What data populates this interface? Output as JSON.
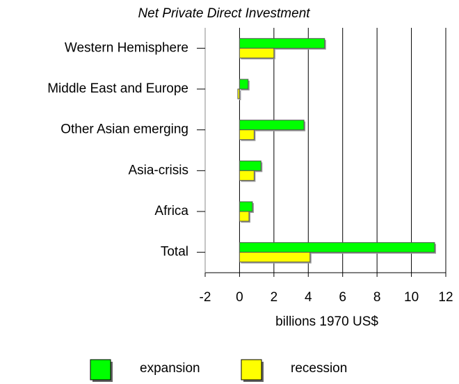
{
  "chart_data": {
    "type": "bar",
    "orientation": "horizontal",
    "title": "Net Private Direct Investment",
    "xlabel": "billions 1970 US$",
    "categories": [
      "Western Hemisphere",
      "Middle East and Europe",
      "Other Asian emerging",
      "Asia-crisis",
      "Africa",
      "Total"
    ],
    "series": [
      {
        "name": "expansion",
        "color": "#00ff00",
        "values": [
          4.95,
          0.5,
          3.75,
          1.25,
          0.75,
          11.35
        ]
      },
      {
        "name": "recession",
        "color": "#ffff00",
        "values": [
          2.0,
          -0.1,
          0.85,
          0.85,
          0.55,
          4.1
        ]
      }
    ],
    "xlim": [
      -2,
      12
    ],
    "xticks": [
      -2,
      0,
      2,
      4,
      6,
      8,
      10,
      12
    ],
    "grid": true,
    "legend": "bottom"
  }
}
